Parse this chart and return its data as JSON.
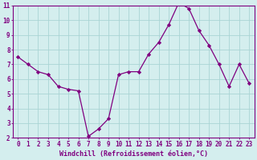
{
  "x": [
    0,
    1,
    2,
    3,
    4,
    5,
    6,
    7,
    8,
    9,
    10,
    11,
    12,
    13,
    14,
    15,
    16,
    17,
    18,
    19,
    20,
    21,
    22,
    23
  ],
  "y": [
    7.5,
    7.0,
    6.5,
    6.3,
    5.5,
    5.3,
    5.2,
    2.1,
    2.6,
    3.3,
    6.3,
    6.5,
    6.5,
    7.7,
    8.5,
    9.7,
    11.2,
    10.8,
    9.3,
    8.3,
    7.0,
    5.5,
    7.0,
    5.7
  ],
  "line_color": "#800080",
  "marker": "D",
  "marker_size": 2.2,
  "bg_color": "#d4eeee",
  "grid_color": "#aad4d4",
  "spine_color": "#800080",
  "xlabel": "Windchill (Refroidissement éolien,°C)",
  "xlabel_color": "#800080",
  "tick_color": "#800080",
  "ylim": [
    2,
    11
  ],
  "yticks": [
    2,
    3,
    4,
    5,
    6,
    7,
    8,
    9,
    10,
    11
  ],
  "xticks": [
    0,
    1,
    2,
    3,
    4,
    5,
    6,
    7,
    8,
    9,
    10,
    11,
    12,
    13,
    14,
    15,
    16,
    17,
    18,
    19,
    20,
    21,
    22,
    23
  ],
  "tick_font_size": 5.5,
  "label_font_size": 6.0,
  "linewidth": 0.9
}
